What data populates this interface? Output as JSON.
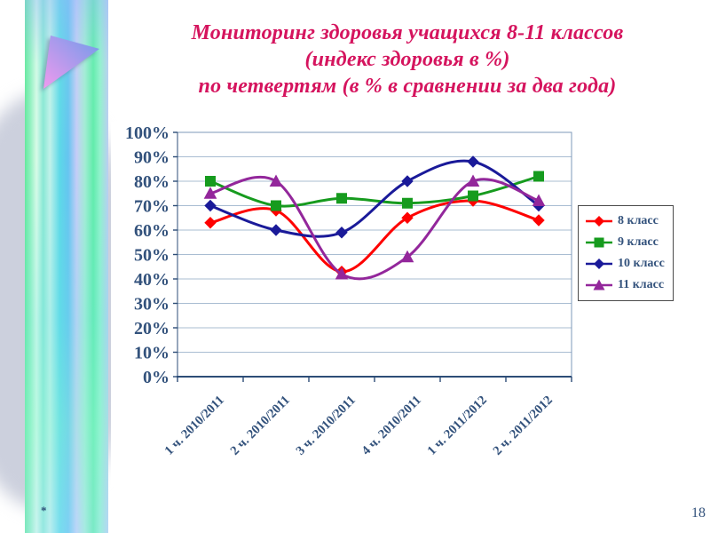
{
  "slide": {
    "title_lines": [
      "Мониторинг здоровья учащихся  8-11 классов",
      "(индекс здоровья в %)",
      "по четвертям (в % в сравнении за два года)"
    ],
    "footnote_marker": "*",
    "page_number": "18"
  },
  "colors": {
    "title": "#d5145e",
    "axis_text": "#33527c",
    "gridline": "#a9bdd2",
    "frame": "#7e99b8",
    "axis_line": "#2d4d77",
    "legend_border": "#4a4a4a",
    "legend_text": "#33527c",
    "page_number": "#33527c",
    "footnote": "#2d4d77",
    "swoosh": "#ccd0dd",
    "triangle_blue": "#6f9bea",
    "triangle_pink": "#f09aee"
  },
  "chart_data": {
    "type": "line",
    "smoothed": true,
    "title": "",
    "xlabel": "",
    "ylabel": "",
    "grid": true,
    "legend_position": "right",
    "ylim": [
      0,
      100
    ],
    "ytick_step": 10,
    "ytick_labels": [
      "0%",
      "10%",
      "20%",
      "30%",
      "40%",
      "50%",
      "60%",
      "70%",
      "80%",
      "90%",
      "100%"
    ],
    "categories": [
      "1 ч. 2010/2011",
      "2 ч. 2010/2011",
      "3 ч. 2010/2011",
      "4 ч. 2010/2011",
      "1 ч. 2011/2012",
      "2 ч. 2011/2012"
    ],
    "series": [
      {
        "name": "8 класс",
        "color": "#fe0000",
        "marker": "diamond",
        "values": [
          63,
          68,
          43,
          65,
          72,
          64
        ]
      },
      {
        "name": "9 класс",
        "color": "#169b1e",
        "marker": "square",
        "values": [
          80,
          70,
          73,
          71,
          74,
          82
        ]
      },
      {
        "name": "10 класс",
        "color": "#1a1a99",
        "marker": "diamond",
        "values": [
          70,
          60,
          59,
          80,
          88,
          70
        ]
      },
      {
        "name": "11 класс",
        "color": "#93279b",
        "marker": "triangle",
        "values": [
          75,
          80,
          42,
          49,
          80,
          72
        ]
      }
    ]
  }
}
